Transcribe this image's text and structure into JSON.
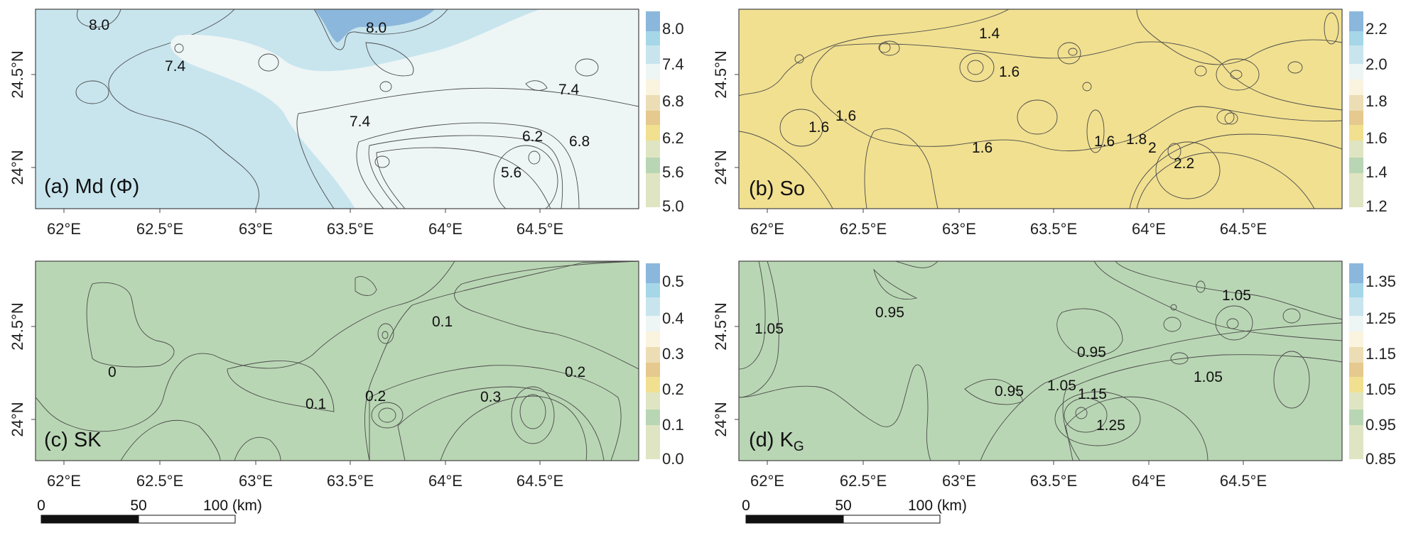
{
  "panels": {
    "a": {
      "label": "(a) Md (Φ)",
      "legend": [
        "8.0",
        "7.4",
        "6.8",
        "6.2",
        "5.6",
        "5.0"
      ],
      "contour_labels": [
        "8.0",
        "8.0",
        "7.4",
        "7.4",
        "7.4",
        "6.2",
        "6.8",
        "5.6"
      ]
    },
    "b": {
      "label": "(b) So",
      "legend": [
        "2.2",
        "2.0",
        "1.8",
        "1.6",
        "1.4",
        "1.2"
      ],
      "contour_labels": [
        "1.4",
        "1.6",
        "1.6",
        "1.6",
        "1.6",
        "1.6",
        "1.8",
        "2",
        "2.2"
      ]
    },
    "c": {
      "label": "(c) SK",
      "legend": [
        "0.5",
        "0.4",
        "0.3",
        "0.2",
        "0.1",
        "0.0"
      ],
      "contour_labels": [
        "0",
        "0.1",
        "0.1",
        "0.2",
        "0.2",
        "0.3"
      ]
    },
    "d": {
      "label_main": "(d) K",
      "label_sub": "G",
      "legend": [
        "1.35",
        "1.25",
        "1.15",
        "1.05",
        "0.95",
        "0.85"
      ],
      "contour_labels": [
        "1.05",
        "0.95",
        "1.05",
        "0.95",
        "0.95",
        "1.05",
        "1.15",
        "1.05",
        "1.25"
      ]
    }
  },
  "axes": {
    "x_ticks": [
      "62°E",
      "62.5°E",
      "63°E",
      "63.5°E",
      "64°E",
      "64.5°E"
    ],
    "y_ticks": [
      "24.5°N",
      "24°N"
    ]
  },
  "scalebar": {
    "labels": [
      "0",
      "50",
      "100 (km)"
    ]
  },
  "colors": {
    "c1": "#dfe5c2",
    "c2": "#b9d6b4",
    "c3": "#f1e090",
    "c4": "#e5c98e",
    "c5": "#ecddb5",
    "c6": "#faf4de",
    "c7": "#eef5f5",
    "c8": "#c8e5ee",
    "c9": "#a6d7e8",
    "c10": "#8cb7dc",
    "white": "#ffffff"
  }
}
